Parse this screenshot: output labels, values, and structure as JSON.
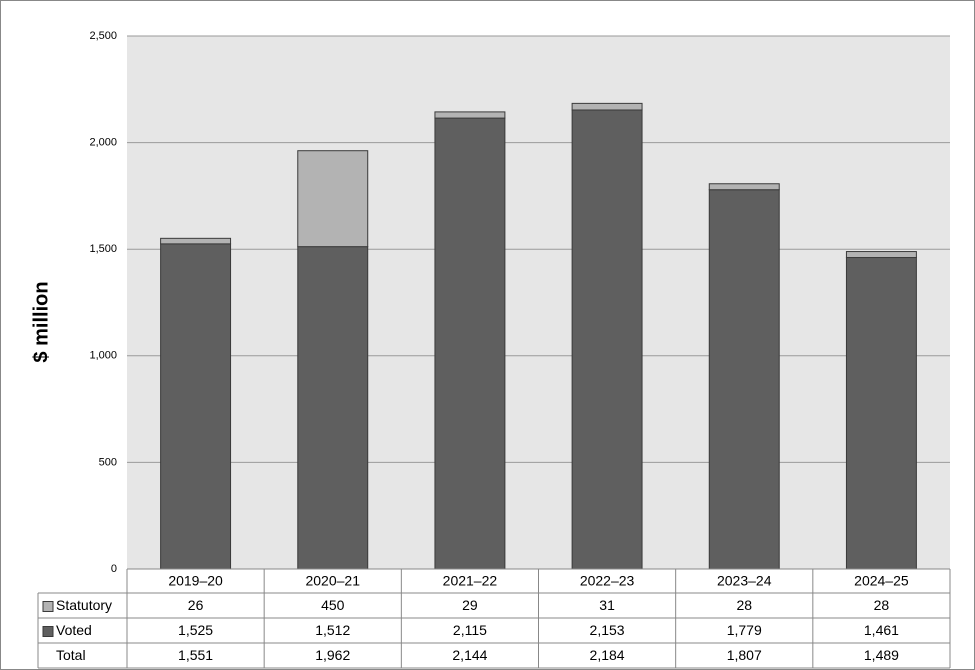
{
  "chart_data": {
    "type": "bar",
    "stacked": true,
    "y_label": "$ million",
    "categories": [
      "2019–20",
      "2020–21",
      "2021–22",
      "2022–23",
      "2023–24",
      "2024–25"
    ],
    "series": [
      {
        "name": "Statutory",
        "color": "#b3b3b3",
        "values": [
          26,
          450,
          29,
          31,
          28,
          28
        ],
        "value_labels": [
          "26",
          "450",
          "29",
          "31",
          "28",
          "28"
        ]
      },
      {
        "name": "Voted",
        "color": "#5f5f5f",
        "values": [
          1525,
          1512,
          2115,
          2153,
          1779,
          1461
        ],
        "value_labels": [
          "1,525",
          "1,512",
          "2,115",
          "2,153",
          "1,779",
          "1,461"
        ]
      }
    ],
    "total": {
      "name": "Total",
      "values": [
        1551,
        1962,
        2144,
        2184,
        1807,
        1489
      ],
      "value_labels": [
        "1,551",
        "1,962",
        "2,144",
        "2,184",
        "1,807",
        "1,489"
      ]
    },
    "ylim": [
      0,
      2500
    ],
    "yticks": [
      0,
      500,
      {
        "value": 1000,
        "label": "1,000"
      },
      {
        "value": 1500,
        "label": "1,500"
      },
      {
        "value": 2000,
        "label": "2,000"
      },
      {
        "value": 2500,
        "label": "2,500"
      }
    ],
    "grid": true
  }
}
